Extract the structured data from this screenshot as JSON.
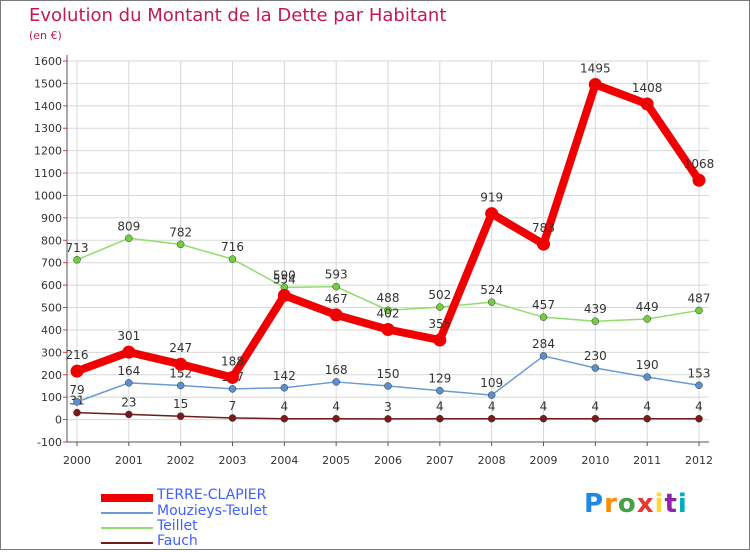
{
  "title": "Evolution du Montant de la Dette par Habitant",
  "unit": "(en €)",
  "logo": {
    "text": "Proxiti"
  },
  "legend": [
    {
      "name": "TERRE-CLAPIER",
      "color": "#f00000"
    },
    {
      "name": "Mouzieys-Teulet",
      "color": "#6a9bd3"
    },
    {
      "name": "Teillet",
      "color": "#90dd6b"
    },
    {
      "name": "Fauch",
      "color": "#6e1c1c"
    }
  ],
  "chart_data": {
    "type": "line",
    "title": "Evolution du Montant de la Dette par Habitant",
    "ylabel": "(en €)",
    "xlabel": "",
    "x": [
      "2000",
      "2001",
      "2002",
      "2003",
      "2004",
      "2005",
      "2006",
      "2007",
      "2008",
      "2009",
      "2010",
      "2011",
      "2012"
    ],
    "y_ticks": [
      -100,
      0,
      100,
      200,
      300,
      400,
      500,
      600,
      700,
      800,
      900,
      1000,
      1100,
      1200,
      1300,
      1400,
      1500,
      1600
    ],
    "ylim": [
      -100,
      1600
    ],
    "grid": true,
    "legend_position": "bottom-left",
    "series": [
      {
        "name": "Fauch",
        "color": "#6e1c1c",
        "marker": "#7a1a1a",
        "values": [
          31,
          23,
          15,
          7,
          4,
          4,
          3,
          4,
          4,
          4,
          4,
          4,
          4
        ],
        "labels": [
          "31",
          "23",
          "15",
          "7",
          "4",
          "4",
          "3",
          "4",
          "4",
          "4",
          "4",
          "4",
          "4"
        ]
      },
      {
        "name": "Mouzieys-Teulet",
        "color": "#6a9bd3",
        "marker": "#5b8fd0",
        "values": [
          79,
          164,
          152,
          137,
          142,
          168,
          150,
          129,
          109,
          284,
          230,
          190,
          153
        ],
        "labels": [
          "79",
          "164",
          "152",
          "137",
          "142",
          "168",
          "150",
          "129",
          "109",
          "284",
          "230",
          "190",
          "153"
        ]
      },
      {
        "name": "Teillet",
        "color": "#90dd6b",
        "marker": "#6fcf3f",
        "values": [
          713,
          809,
          782,
          716,
          590,
          593,
          488,
          502,
          524,
          457,
          439,
          449,
          487
        ],
        "labels": [
          "713",
          "809",
          "782",
          "716",
          "590",
          "593",
          "488",
          "502",
          "524",
          "457",
          "439",
          "449",
          "487"
        ]
      },
      {
        "name": "TERRE-CLAPIER",
        "color": "#f00000",
        "marker": "#f00000",
        "values": [
          216,
          301,
          247,
          188,
          554,
          467,
          402,
          355,
          919,
          783,
          1495,
          1408,
          1068
        ],
        "labels": [
          "216",
          "301",
          "247",
          "188",
          "554",
          "467",
          "402",
          "355",
          "919",
          "783",
          "1495",
          "1408",
          "1068"
        ]
      }
    ]
  }
}
